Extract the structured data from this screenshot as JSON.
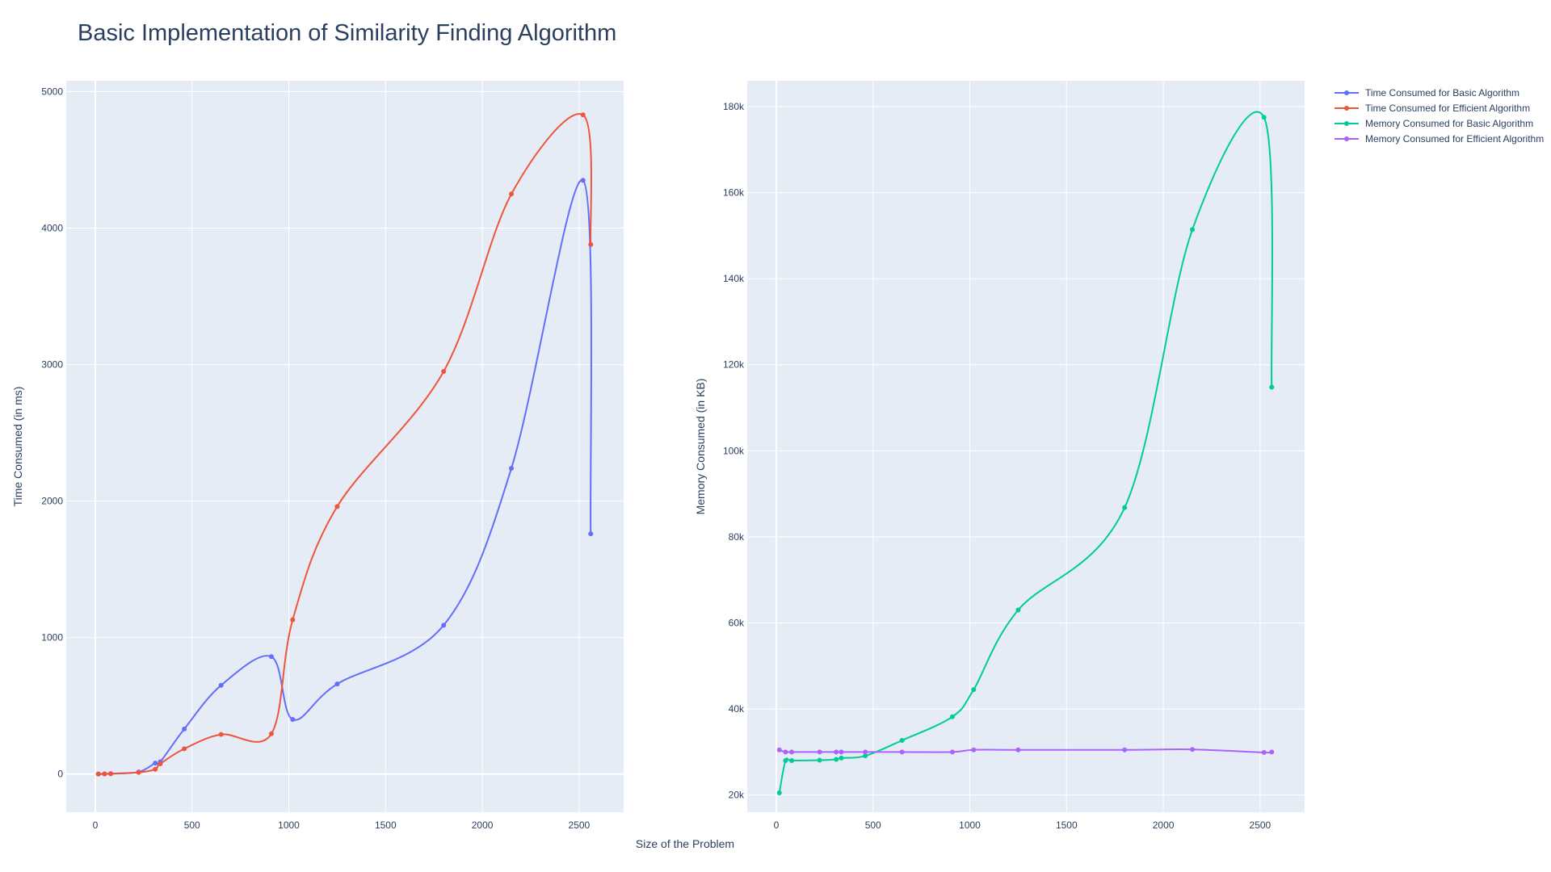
{
  "figure": {
    "title": "Basic Implementation of Similarity Finding Algorithm",
    "xlabel": "Size of the Problem",
    "colors": {
      "background": "#ffffff",
      "plot_bg": "#e5ecf6",
      "grid": "#ffffff",
      "text": "#2a3f5f"
    },
    "legend": {
      "placement": "top-right",
      "entries": [
        {
          "name": "Time Consumed for Basic Algorithm",
          "color": "#636efa"
        },
        {
          "name": "Time Consumed for Efficient Algorithm",
          "color": "#ef553b"
        },
        {
          "name": "Memory Consumed for Basic Algorithm",
          "color": "#00cc96"
        },
        {
          "name": "Memory Consumed for Efficient Algorithm",
          "color": "#ab63fa"
        }
      ]
    }
  },
  "chart_data": [
    {
      "type": "line",
      "title": "",
      "xlabel": "Size of the Problem",
      "ylabel": "Time Consumed (in ms)",
      "xlim": [
        -150,
        2730
      ],
      "ylim": [
        -280,
        5080
      ],
      "xticks": [
        0,
        500,
        1000,
        1500,
        2000,
        2500
      ],
      "yticks": [
        0,
        1000,
        2000,
        3000,
        4000,
        5000
      ],
      "grid": true,
      "line_shape": "spline",
      "series": [
        {
          "name": "Time Consumed for Basic Algorithm",
          "color": "#636efa",
          "x": [
            16,
            48,
            80,
            224,
            310,
            336,
            460,
            650,
            910,
            1020,
            1250,
            1800,
            2150,
            2520,
            2560
          ],
          "y": [
            0,
            1,
            2,
            15,
            80,
            90,
            330,
            650,
            860,
            400,
            660,
            1090,
            2240,
            4350,
            1760
          ]
        },
        {
          "name": "Time Consumed for Efficient Algorithm",
          "color": "#ef553b",
          "x": [
            16,
            48,
            80,
            224,
            310,
            336,
            460,
            650,
            910,
            1020,
            1250,
            1800,
            2150,
            2520,
            2560
          ],
          "y": [
            0,
            1,
            3,
            12,
            35,
            75,
            185,
            290,
            295,
            1130,
            1960,
            2950,
            4250,
            4830,
            3880
          ]
        }
      ]
    },
    {
      "type": "line",
      "title": "",
      "xlabel": "Size of the Problem",
      "ylabel": "Memory Consumed (in KB)",
      "xlim": [
        -150,
        2730
      ],
      "ylim": [
        16000,
        186000
      ],
      "xticks": [
        0,
        500,
        1000,
        1500,
        2000,
        2500
      ],
      "yticks": [
        20000,
        40000,
        60000,
        80000,
        100000,
        120000,
        140000,
        160000,
        180000
      ],
      "ytick_labels": [
        "20k",
        "40k",
        "60k",
        "80k",
        "100k",
        "120k",
        "140k",
        "160k",
        "180k"
      ],
      "grid": true,
      "line_shape": "spline",
      "series": [
        {
          "name": "Memory Consumed for Basic Algorithm",
          "color": "#00cc96",
          "x": [
            16,
            48,
            80,
            224,
            310,
            336,
            460,
            650,
            910,
            1020,
            1250,
            1800,
            2150,
            2520,
            2560
          ],
          "y": [
            20500,
            28000,
            28000,
            28100,
            28300,
            28600,
            29100,
            32700,
            38200,
            44500,
            63000,
            86800,
            151400,
            177500,
            114800
          ]
        },
        {
          "name": "Memory Consumed for Efficient Algorithm",
          "color": "#ab63fa",
          "x": [
            16,
            48,
            80,
            224,
            310,
            336,
            460,
            650,
            910,
            1020,
            1250,
            1800,
            2150,
            2520,
            2560
          ],
          "y": [
            30500,
            30000,
            30000,
            30000,
            30000,
            30000,
            30000,
            30000,
            30000,
            30500,
            30500,
            30500,
            30600,
            29900,
            30000
          ]
        }
      ]
    }
  ]
}
